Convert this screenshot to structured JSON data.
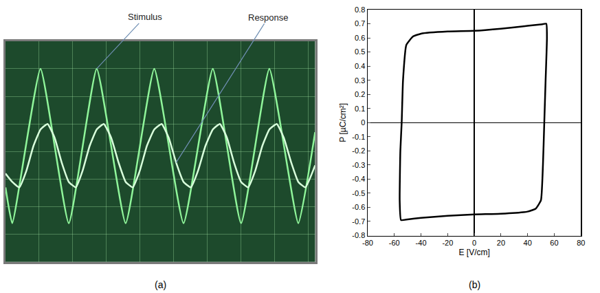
{
  "chart_data": [
    {
      "type": "line",
      "title": "(a)",
      "xlim": [
        0,
        9.2
      ],
      "ylim": [
        -4,
        4
      ],
      "xticks": [
        0,
        1,
        2,
        3,
        4,
        5,
        6,
        7,
        8,
        9
      ],
      "yticks": [
        -4,
        -3,
        -2,
        -1,
        0,
        1,
        2,
        3,
        4
      ],
      "grid": true,
      "tick_labels": false,
      "series": [
        {
          "name": "Stimulus",
          "color": "#8ff59a",
          "line_style": "solid",
          "x": [
            0,
            0.2,
            1.04,
            1.88,
            2.71,
            3.57,
            4.42,
            5.29,
            6.16,
            7.0,
            7.84,
            8.7,
            9.2
          ],
          "values": [
            -1.3,
            -2.6,
            3.0,
            -2.6,
            3.0,
            -2.6,
            3.0,
            -2.6,
            3.0,
            -2.6,
            3.0,
            -2.6,
            0.7
          ]
        },
        {
          "name": "Response",
          "color": "#d9ffdc",
          "line_style": "solid",
          "x": [
            0,
            0.2,
            0.41,
            0.62,
            0.83,
            1.04,
            1.25,
            1.46,
            1.67,
            1.88,
            2.09,
            2.29,
            2.5,
            2.71,
            2.92,
            3.14,
            3.36,
            3.57,
            3.78,
            3.99,
            4.2,
            4.42,
            4.64,
            4.85,
            5.07,
            5.29,
            5.51,
            5.72,
            5.94,
            6.16,
            6.37,
            6.58,
            6.79,
            7.0,
            7.21,
            7.42,
            7.63,
            7.84,
            8.06,
            8.27,
            8.49,
            8.7,
            8.91,
            9.2
          ],
          "values": [
            -0.8,
            -1.1,
            -1.3,
            -0.7,
            0.2,
            0.8,
            1.0,
            0.5,
            -0.4,
            -1.1,
            -1.3,
            -0.7,
            0.2,
            0.8,
            1.0,
            0.5,
            -0.4,
            -1.1,
            -1.3,
            -0.7,
            0.2,
            0.8,
            1.0,
            0.5,
            -0.4,
            -1.1,
            -1.3,
            -0.7,
            0.2,
            0.8,
            1.0,
            0.5,
            -0.4,
            -1.1,
            -1.3,
            -0.7,
            0.2,
            0.8,
            1.0,
            0.5,
            -0.4,
            -1.1,
            -1.3,
            -0.5
          ]
        }
      ]
    },
    {
      "type": "line",
      "title": "(b)",
      "x_label": "E [V/cm]",
      "y_label": "P [µC/cm²]",
      "xlim": [
        -80,
        80
      ],
      "ylim": [
        -0.8,
        0.8
      ],
      "xticks": [
        -80,
        -60,
        -40,
        -20,
        0,
        20,
        40,
        60,
        80
      ],
      "yticks": [
        -0.8,
        -0.7,
        -0.6,
        -0.5,
        -0.4,
        -0.3,
        -0.2,
        -0.1,
        0,
        0.1,
        0.2,
        0.3,
        0.4,
        0.5,
        0.6,
        0.7,
        0.8
      ],
      "grid": false,
      "series": [
        {
          "color": "#000000",
          "line_style": "solid",
          "x": [
            -55,
            -56,
            -55.5,
            -54.5,
            -53.5,
            -51,
            -46,
            -40,
            -20,
            0,
            20,
            40,
            50,
            54,
            54.5,
            53.5,
            52.5,
            51.5,
            50,
            46,
            40,
            20,
            0,
            -20,
            -40,
            -50,
            -55
          ],
          "values": [
            -0.69,
            -0.55,
            -0.2,
            0,
            0.3,
            0.55,
            0.61,
            0.63,
            0.645,
            0.65,
            0.665,
            0.685,
            0.695,
            0.7,
            0.6,
            0.3,
            0,
            -0.3,
            -0.55,
            -0.61,
            -0.63,
            -0.645,
            -0.65,
            -0.66,
            -0.675,
            -0.685,
            -0.69
          ]
        }
      ]
    }
  ]
}
